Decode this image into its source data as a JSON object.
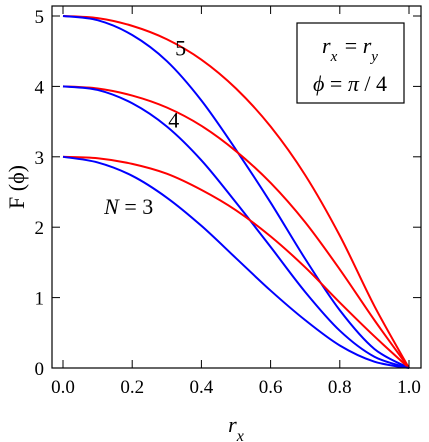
{
  "chart_data": {
    "type": "line",
    "title": "",
    "xlabel": "r_x",
    "ylabel": "F (ϕ)",
    "xlim": [
      0,
      1
    ],
    "ylim": [
      0,
      5
    ],
    "x_ticks": [
      "0.0",
      "0.2",
      "0.4",
      "0.6",
      "0.8",
      "1.0"
    ],
    "y_ticks": [
      "0",
      "1",
      "2",
      "3",
      "4",
      "5"
    ],
    "grid": false,
    "series": [
      {
        "color": "#ff0000",
        "x": [
          0,
          0.1,
          0.2,
          0.3,
          0.4,
          0.5,
          0.6,
          0.7,
          0.8,
          0.9,
          1.0
        ],
        "y": [
          5.0,
          4.97,
          4.86,
          4.67,
          4.38,
          3.97,
          3.43,
          2.74,
          1.88,
          0.88,
          0.0
        ]
      },
      {
        "color": "#0000ff",
        "x": [
          0,
          0.1,
          0.2,
          0.3,
          0.4,
          0.5,
          0.6,
          0.7,
          0.8,
          0.9,
          1.0
        ],
        "y": [
          5.0,
          4.94,
          4.73,
          4.36,
          3.8,
          3.1,
          2.35,
          1.55,
          0.82,
          0.27,
          0.0
        ]
      },
      {
        "color": "#ff0000",
        "x": [
          0,
          0.1,
          0.2,
          0.3,
          0.4,
          0.5,
          0.6,
          0.7,
          0.8,
          0.9,
          1.0
        ],
        "y": [
          4.0,
          3.97,
          3.87,
          3.7,
          3.44,
          3.08,
          2.63,
          2.07,
          1.4,
          0.68,
          0.0
        ]
      },
      {
        "color": "#0000ff",
        "x": [
          0,
          0.1,
          0.2,
          0.3,
          0.4,
          0.5,
          0.6,
          0.7,
          0.8,
          0.9,
          1.0
        ],
        "y": [
          4.0,
          3.95,
          3.76,
          3.43,
          2.95,
          2.35,
          1.72,
          1.08,
          0.53,
          0.16,
          0.0
        ]
      },
      {
        "color": "#ff0000",
        "x": [
          0,
          0.1,
          0.2,
          0.3,
          0.4,
          0.5,
          0.6,
          0.7,
          0.8,
          0.9,
          1.0
        ],
        "y": [
          3.0,
          2.98,
          2.9,
          2.76,
          2.53,
          2.24,
          1.87,
          1.43,
          0.93,
          0.45,
          0.0
        ]
      },
      {
        "color": "#0000ff",
        "x": [
          0,
          0.1,
          0.2,
          0.3,
          0.4,
          0.5,
          0.6,
          0.7,
          0.8,
          0.9,
          1.0
        ],
        "y": [
          3.0,
          2.92,
          2.73,
          2.42,
          2.02,
          1.56,
          1.1,
          0.68,
          0.32,
          0.09,
          0.0
        ]
      }
    ],
    "annotations": [
      {
        "text": "5",
        "x": 0.34,
        "y": 4.55
      },
      {
        "text": "4",
        "x": 0.32,
        "y": 3.53
      },
      {
        "text": "N = 3",
        "x": 0.19,
        "y": 2.3
      }
    ],
    "legend": {
      "placement": "top-right",
      "lines": [
        "r_x = r_y",
        "ϕ = π / 4"
      ]
    }
  }
}
